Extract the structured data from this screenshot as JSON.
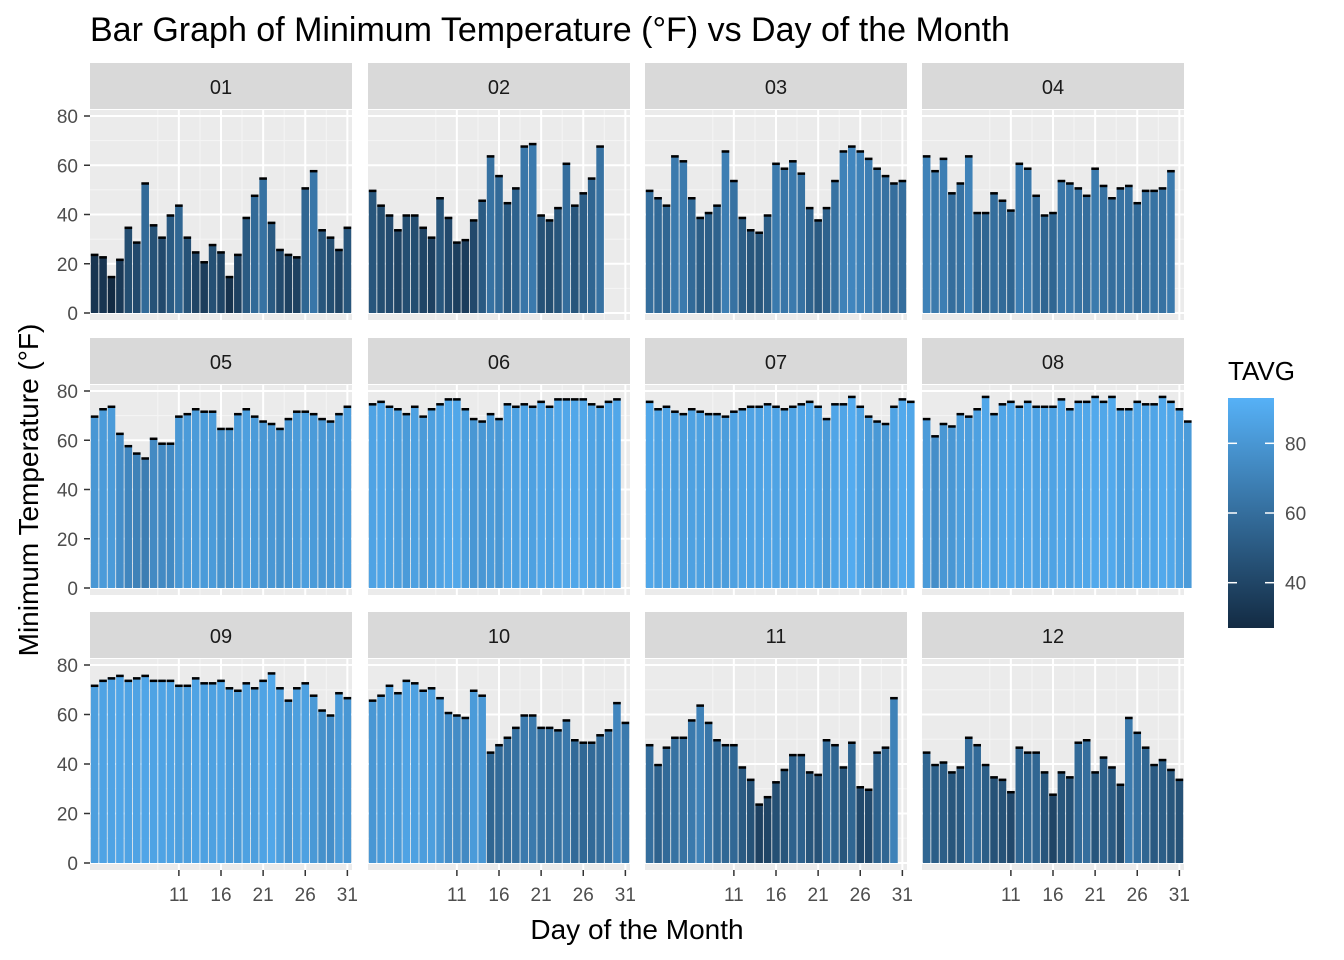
{
  "chart_data": {
    "type": "bar",
    "title": "Bar Graph of Minimum Temperature (°F) vs Day of the Month",
    "xlabel": "Day of the Month",
    "ylabel": "Minimum Temperature (°F)",
    "ylim": [
      0,
      80
    ],
    "y_ticks": [
      0,
      20,
      40,
      60,
      80
    ],
    "x_ticks": [
      11,
      16,
      21,
      26,
      31
    ],
    "grid": true,
    "legend": {
      "title": "TAVG",
      "position": "right",
      "ticks": [
        40,
        60,
        80
      ],
      "range": [
        27,
        93
      ],
      "color_low": "#132B43",
      "color_high": "#56B1F7"
    },
    "panels": [
      {
        "name": "01",
        "tmin": [
          24,
          23,
          15,
          22,
          35,
          29,
          53,
          36,
          31,
          40,
          44,
          31,
          25,
          21,
          28,
          25,
          15,
          24,
          39,
          48,
          55,
          37,
          26,
          24,
          23,
          51,
          58,
          34,
          31,
          26,
          35
        ],
        "tavg": [
          32,
          32,
          27,
          34,
          44,
          42,
          58,
          46,
          42,
          50,
          56,
          46,
          40,
          36,
          45,
          40,
          31,
          38,
          50,
          58,
          62,
          50,
          42,
          38,
          38,
          56,
          64,
          48,
          44,
          40,
          48
        ]
      },
      {
        "name": "02",
        "tmin": [
          50,
          44,
          40,
          34,
          40,
          40,
          35,
          31,
          47,
          39,
          29,
          30,
          38,
          46,
          64,
          56,
          45,
          51,
          68,
          69,
          40,
          38,
          43,
          61,
          44,
          49,
          55,
          68
        ],
        "tavg": [
          48,
          44,
          43,
          40,
          44,
          44,
          40,
          38,
          48,
          42,
          37,
          36,
          42,
          50,
          62,
          58,
          50,
          54,
          64,
          66,
          46,
          44,
          48,
          60,
          48,
          52,
          56,
          62
        ]
      },
      {
        "name": "03",
        "tmin": [
          50,
          47,
          44,
          64,
          62,
          47,
          39,
          41,
          44,
          66,
          54,
          39,
          34,
          33,
          40,
          61,
          59,
          62,
          57,
          43,
          38,
          43,
          54,
          66,
          68,
          66,
          63,
          59,
          56,
          53,
          54
        ],
        "tavg": [
          60,
          58,
          56,
          66,
          66,
          58,
          52,
          52,
          54,
          68,
          62,
          52,
          48,
          48,
          52,
          66,
          64,
          66,
          62,
          54,
          50,
          54,
          62,
          70,
          72,
          70,
          68,
          64,
          62,
          60,
          60
        ]
      },
      {
        "name": "04",
        "tmin": [
          64,
          58,
          63,
          49,
          53,
          64,
          41,
          41,
          49,
          46,
          42,
          61,
          59,
          48,
          40,
          41,
          54,
          53,
          51,
          48,
          59,
          52,
          47,
          51,
          52,
          45,
          50,
          50,
          51,
          58
        ],
        "tavg": [
          70,
          66,
          68,
          60,
          62,
          70,
          56,
          56,
          60,
          58,
          56,
          68,
          66,
          60,
          56,
          56,
          64,
          64,
          62,
          60,
          66,
          62,
          60,
          62,
          62,
          58,
          62,
          62,
          62,
          66
        ]
      },
      {
        "name": "05",
        "tmin": [
          70,
          73,
          74,
          63,
          58,
          55,
          53,
          61,
          59,
          59,
          70,
          71,
          73,
          72,
          72,
          65,
          65,
          71,
          73,
          70,
          68,
          67,
          65,
          69,
          72,
          72,
          71,
          69,
          68,
          71,
          74
        ],
        "tavg": [
          80,
          82,
          82,
          76,
          72,
          70,
          68,
          74,
          74,
          74,
          80,
          82,
          82,
          82,
          82,
          78,
          78,
          82,
          84,
          82,
          80,
          80,
          78,
          80,
          82,
          84,
          82,
          80,
          80,
          82,
          84
        ]
      },
      {
        "name": "06",
        "tmin": [
          75,
          76,
          74,
          73,
          71,
          74,
          70,
          73,
          75,
          77,
          77,
          73,
          69,
          68,
          71,
          69,
          75,
          74,
          75,
          74,
          76,
          74,
          77,
          77,
          77,
          77,
          75,
          74,
          76,
          77
        ],
        "tavg": [
          86,
          87,
          85,
          84,
          82,
          85,
          82,
          84,
          86,
          88,
          88,
          84,
          80,
          80,
          82,
          80,
          86,
          85,
          86,
          85,
          87,
          85,
          88,
          88,
          88,
          88,
          86,
          85,
          87,
          88
        ]
      },
      {
        "name": "07",
        "tmin": [
          76,
          73,
          74,
          72,
          71,
          73,
          72,
          71,
          71,
          70,
          72,
          73,
          74,
          74,
          75,
          74,
          73,
          74,
          75,
          76,
          74,
          69,
          75,
          75,
          78,
          74,
          70,
          68,
          67,
          74,
          77,
          76
        ],
        "tavg": [
          88,
          86,
          86,
          85,
          84,
          85,
          85,
          84,
          84,
          83,
          85,
          86,
          86,
          86,
          87,
          86,
          85,
          86,
          87,
          88,
          86,
          82,
          87,
          87,
          90,
          86,
          82,
          81,
          80,
          86,
          89,
          88
        ]
      },
      {
        "name": "08",
        "tmin": [
          69,
          62,
          67,
          66,
          71,
          70,
          73,
          78,
          71,
          75,
          76,
          74,
          76,
          74,
          74,
          74,
          77,
          73,
          76,
          76,
          78,
          76,
          78,
          73,
          73,
          76,
          75,
          75,
          78,
          76,
          73,
          68
        ],
        "tavg": [
          82,
          76,
          80,
          80,
          84,
          83,
          85,
          88,
          84,
          87,
          88,
          86,
          88,
          86,
          86,
          86,
          88,
          85,
          88,
          88,
          89,
          88,
          89,
          85,
          85,
          88,
          87,
          87,
          89,
          88,
          85,
          82
        ]
      },
      {
        "name": "09",
        "tmin": [
          72,
          74,
          75,
          76,
          74,
          75,
          76,
          74,
          74,
          74,
          72,
          72,
          75,
          73,
          73,
          74,
          71,
          70,
          73,
          71,
          74,
          77,
          71,
          66,
          71,
          73,
          68,
          62,
          60,
          69,
          67
        ],
        "tavg": [
          84,
          86,
          86,
          87,
          86,
          86,
          87,
          86,
          86,
          86,
          84,
          84,
          86,
          85,
          85,
          86,
          83,
          82,
          85,
          84,
          86,
          88,
          84,
          80,
          84,
          85,
          81,
          77,
          76,
          82,
          80
        ]
      },
      {
        "name": "10",
        "tmin": [
          66,
          68,
          72,
          69,
          74,
          73,
          70,
          71,
          67,
          61,
          60,
          59,
          70,
          68,
          45,
          48,
          51,
          55,
          60,
          60,
          55,
          55,
          54,
          58,
          50,
          49,
          49,
          52,
          54,
          65,
          57
        ],
        "tavg": [
          80,
          82,
          84,
          82,
          86,
          85,
          83,
          84,
          80,
          76,
          75,
          74,
          82,
          80,
          56,
          58,
          60,
          62,
          66,
          66,
          62,
          62,
          62,
          65,
          58,
          57,
          58,
          60,
          62,
          72,
          66
        ]
      },
      {
        "name": "11",
        "tmin": [
          48,
          40,
          47,
          51,
          51,
          58,
          64,
          57,
          50,
          48,
          48,
          39,
          34,
          24,
          27,
          33,
          38,
          44,
          44,
          37,
          36,
          50,
          48,
          39,
          49,
          31,
          30,
          45,
          47,
          67
        ],
        "tavg": [
          60,
          54,
          58,
          62,
          62,
          66,
          70,
          64,
          58,
          57,
          57,
          50,
          46,
          38,
          40,
          45,
          48,
          54,
          54,
          48,
          46,
          58,
          56,
          48,
          56,
          42,
          42,
          54,
          56,
          70
        ]
      },
      {
        "name": "12",
        "tmin": [
          45,
          40,
          41,
          37,
          39,
          51,
          48,
          40,
          35,
          34,
          29,
          47,
          45,
          45,
          37,
          28,
          37,
          35,
          49,
          50,
          37,
          43,
          39,
          32,
          59,
          53,
          47,
          40,
          42,
          38,
          34
        ],
        "tavg": [
          56,
          52,
          52,
          48,
          50,
          60,
          58,
          52,
          46,
          46,
          42,
          56,
          56,
          56,
          48,
          40,
          48,
          46,
          58,
          60,
          48,
          54,
          50,
          44,
          66,
          62,
          56,
          50,
          52,
          48,
          46
        ]
      }
    ]
  }
}
